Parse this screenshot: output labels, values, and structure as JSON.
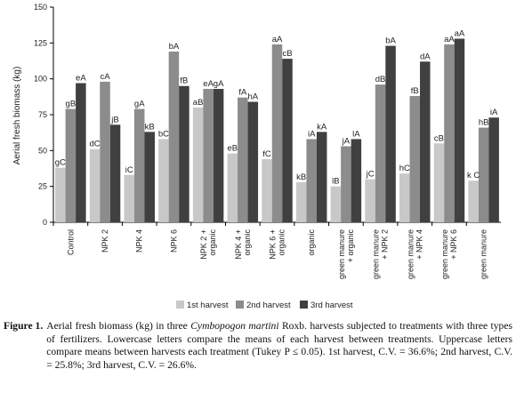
{
  "chart_data": {
    "type": "bar",
    "ylabel": "Aerial fresh biomass (kg)",
    "ylim": [
      0,
      150
    ],
    "yticks": [
      0,
      25,
      50,
      75,
      100,
      125,
      150
    ],
    "grid": false,
    "legend_position": "bottom",
    "categories": [
      "Control",
      "NPK 2",
      "NPK 4",
      "NPK 6",
      "NPK 2 + organic",
      "NPK 4 + organic",
      "NPK 6 + organic",
      "organic",
      "green manure + organic",
      "green manure + NPK 2",
      "green manure + NPK 4",
      "green manure + NPK 6",
      "green manure"
    ],
    "category_lines": [
      [
        "Control"
      ],
      [
        "NPK 2"
      ],
      [
        "NPK 4"
      ],
      [
        "NPK 6"
      ],
      [
        "NPK 2 +",
        "organic"
      ],
      [
        "NPK 4 +",
        "organic"
      ],
      [
        "NPK 6 +",
        "organic"
      ],
      [
        "organic"
      ],
      [
        "green manure",
        "+ organic"
      ],
      [
        "green manure",
        "+ NPK 2"
      ],
      [
        "green manure",
        "+ NPK 4"
      ],
      [
        "green manure",
        "+ NPK 6"
      ],
      [
        "green manure"
      ]
    ],
    "series": [
      {
        "name": "1st harvest",
        "color": "#c8c8c8",
        "values": [
          38,
          51,
          33,
          58,
          80,
          48,
          44,
          28,
          25,
          30,
          34,
          55,
          29
        ],
        "labels": [
          "gC",
          "dC",
          "iC",
          "bC",
          "aB",
          "eB",
          "fC",
          "kB",
          "lB",
          "jC",
          "hC",
          "cB",
          "k C"
        ]
      },
      {
        "name": "2nd harvest",
        "color": "#8c8c8c",
        "values": [
          79,
          98,
          79,
          119,
          93,
          87,
          124,
          58,
          53,
          96,
          88,
          124,
          66
        ],
        "labels": [
          "gB",
          "cA",
          "gA",
          "bA",
          "eA",
          "fA",
          "aA",
          "iA",
          "jA",
          "dB",
          "fB",
          "aA",
          "hB"
        ]
      },
      {
        "name": "3rd harvest",
        "color": "#404040",
        "values": [
          97,
          68,
          63,
          95,
          93,
          84,
          114,
          63,
          58,
          123,
          112,
          128,
          73
        ],
        "labels": [
          "eA",
          "jB",
          "kB",
          "fB",
          "gA",
          "hA",
          "cB",
          "kA",
          "lA",
          "bA",
          "dA",
          "aA",
          "iA"
        ]
      }
    ]
  },
  "caption": {
    "label": "Figure 1.",
    "text_before": "Aerial fresh biomass (kg) in three ",
    "species": "Cymbopogon martini",
    "text_after": " Roxb. harvests subjected to treatments with three types of fertilizers.  Lowercase letters compare the means of each harvest  between treatments.  Uppercase letters compare means between harvests each treatment (Tukey P ≤ 0.05). 1st harvest, C.V. = 36.6%; 2nd harvest, C.V. = 25.8%; 3rd harvest, C.V. = 26.6%."
  }
}
